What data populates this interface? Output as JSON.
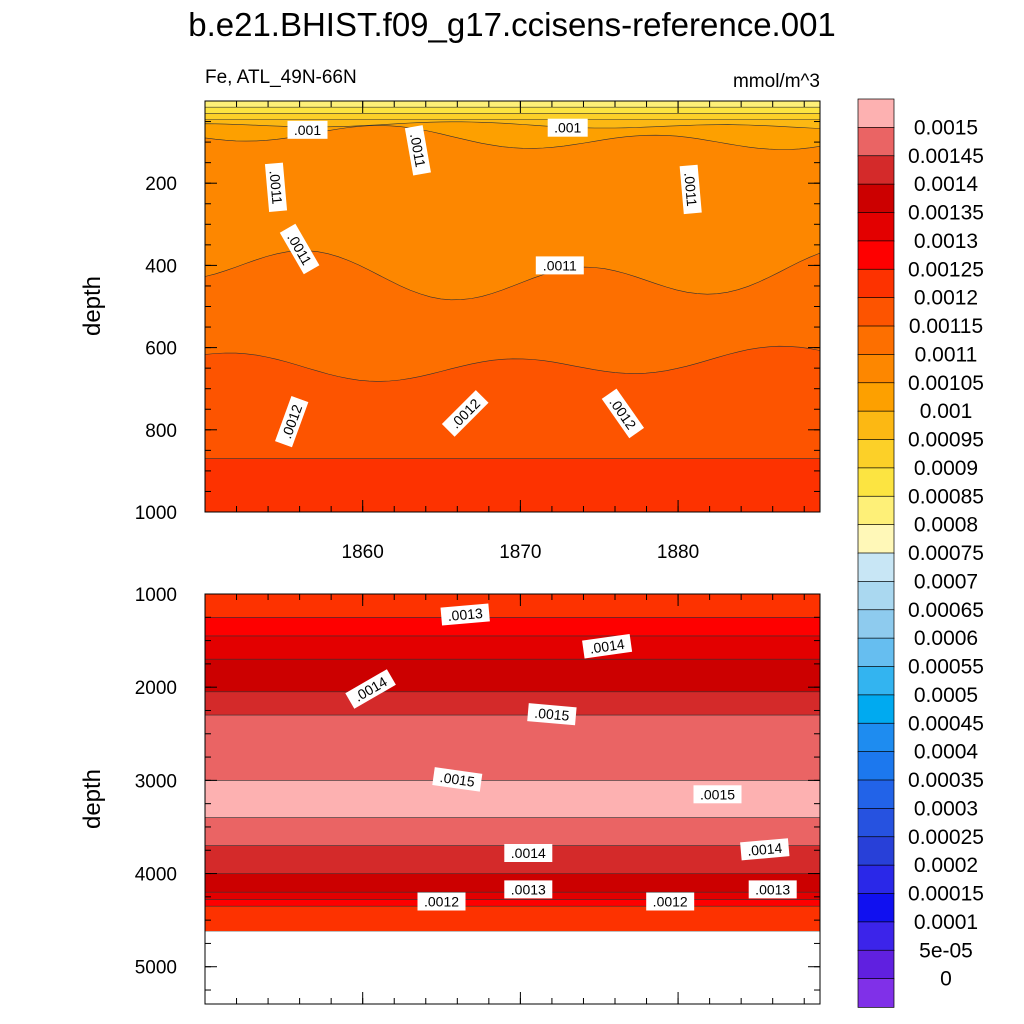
{
  "title": "b.e21.BHIST.f09_g17.ccisens-reference.001",
  "chart_data": [
    {
      "type": "contour",
      "panel": "upper",
      "variable_label": "Fe, ATL_49N-66N",
      "units": "mmol/m^3",
      "xlabel": "",
      "ylabel": "depth",
      "xlim": [
        1850,
        1889
      ],
      "ylim": [
        1000,
        0
      ],
      "x_ticks": [
        1860,
        1870,
        1880
      ],
      "y_ticks": [
        200,
        400,
        600,
        800,
        1000
      ],
      "band_boundaries": [
        {
          "depth": 15,
          "value": 0.00085
        },
        {
          "depth": 30,
          "value": 0.0009
        },
        {
          "depth": 45,
          "value": 0.00095
        },
        {
          "depth": 60,
          "value": 0.001
        },
        {
          "depth": 90,
          "value": 0.00105
        },
        {
          "depth": 420,
          "value": 0.0011
        },
        {
          "depth": 640,
          "value": 0.00115
        },
        {
          "depth": 870,
          "value": 0.0012
        },
        {
          "depth": 1000,
          "value": 0.00125
        }
      ],
      "contour_labels": [
        {
          "text": ".001",
          "x": 1856.5,
          "y": 70,
          "rot": 0
        },
        {
          "text": ".001",
          "x": 1873,
          "y": 65,
          "rot": 0
        },
        {
          "text": ".0011",
          "x": 1863.5,
          "y": 120,
          "rot": 80
        },
        {
          "text": ".0011",
          "x": 1854.5,
          "y": 210,
          "rot": 85
        },
        {
          "text": ".0011",
          "x": 1880.8,
          "y": 215,
          "rot": 85
        },
        {
          "text": ".0011",
          "x": 1856,
          "y": 360,
          "rot": 60
        },
        {
          "text": ".0011",
          "x": 1872.5,
          "y": 400,
          "rot": 0
        },
        {
          "text": ".0012",
          "x": 1855.5,
          "y": 780,
          "rot": -70
        },
        {
          "text": ".0012",
          "x": 1866.5,
          "y": 760,
          "rot": -45
        },
        {
          "text": ".0012",
          "x": 1876.5,
          "y": 760,
          "rot": 55
        }
      ]
    },
    {
      "type": "contour",
      "panel": "lower",
      "xlabel": "",
      "ylabel": "depth",
      "xlim": [
        1850,
        1889
      ],
      "ylim": [
        5400,
        1000
      ],
      "y_ticks": [
        1000,
        2000,
        3000,
        4000,
        5000
      ],
      "seafloor_depth": 4620,
      "band_boundaries": [
        {
          "depth": 1250,
          "value": 0.00125
        },
        {
          "depth": 1450,
          "value": 0.0013
        },
        {
          "depth": 1700,
          "value": 0.00135
        },
        {
          "depth": 2050,
          "value": 0.0014
        },
        {
          "depth": 2300,
          "value": 0.00145
        },
        {
          "depth": 3000,
          "value": 0.0015
        },
        {
          "depth": 3400,
          "value": 0.00145
        },
        {
          "depth": 3700,
          "value": 0.0014
        },
        {
          "depth": 4000,
          "value": 0.00135
        },
        {
          "depth": 4200,
          "value": 0.0013
        },
        {
          "depth": 4280,
          "value": 0.00125
        },
        {
          "depth": 4350,
          "value": 0.0012
        },
        {
          "depth": 4620,
          "value": 0.00115
        }
      ],
      "contour_labels": [
        {
          "text": ".0013",
          "x": 1866.5,
          "y": 1220,
          "rot": -5
        },
        {
          "text": ".0014",
          "x": 1875.5,
          "y": 1560,
          "rot": -8
        },
        {
          "text": ".0014",
          "x": 1860.5,
          "y": 2020,
          "rot": -30
        },
        {
          "text": ".0015",
          "x": 1872,
          "y": 2290,
          "rot": 5
        },
        {
          "text": ".0015",
          "x": 1866,
          "y": 2990,
          "rot": 8
        },
        {
          "text": ".0015",
          "x": 1882.5,
          "y": 3150,
          "rot": 0
        },
        {
          "text": ".0014",
          "x": 1870.5,
          "y": 3780,
          "rot": 0
        },
        {
          "text": ".0014",
          "x": 1885.5,
          "y": 3740,
          "rot": -5
        },
        {
          "text": ".0013",
          "x": 1870.5,
          "y": 4170,
          "rot": 0
        },
        {
          "text": ".0013",
          "x": 1886,
          "y": 4170,
          "rot": 0
        },
        {
          "text": ".0012",
          "x": 1865,
          "y": 4300,
          "rot": 0
        },
        {
          "text": ".0012",
          "x": 1879.5,
          "y": 4300,
          "rot": 0
        }
      ]
    }
  ],
  "colorbar": {
    "labels": [
      "0.0015",
      "0.00145",
      "0.0014",
      "0.00135",
      "0.0013",
      "0.00125",
      "0.0012",
      "0.00115",
      "0.0011",
      "0.00105",
      "0.001",
      "0.00095",
      "0.0009",
      "0.00085",
      "0.0008",
      "0.00075",
      "0.0007",
      "0.00065",
      "0.0006",
      "0.00055",
      "0.0005",
      "0.00045",
      "0.0004",
      "0.00035",
      "0.0003",
      "0.00025",
      "0.0002",
      "0.00015",
      "0.0001",
      "5e-05",
      "0"
    ],
    "levels": [
      0.0015,
      0.00145,
      0.0014,
      0.00135,
      0.0013,
      0.00125,
      0.0012,
      0.00115,
      0.0011,
      0.00105,
      0.001,
      0.00095,
      0.0009,
      0.00085,
      0.0008,
      0.00075,
      0.0007,
      0.00065,
      0.0006,
      0.00055,
      0.0005,
      0.00045,
      0.0004,
      0.00035,
      0.0003,
      0.00025,
      0.0002,
      0.00015,
      0.0001,
      5e-05,
      0
    ],
    "colors": [
      "#FDB1B1",
      "#EA6464",
      "#D42A2A",
      "#CC0000",
      "#E30000",
      "#FE0000",
      "#FD3200",
      "#FD5400",
      "#FD6F00",
      "#FD8700",
      "#FDA000",
      "#FCB813",
      "#FCD028",
      "#FCE441",
      "#FEF078",
      "#FFF8B8",
      "#C8E6F5",
      "#AAD8F0",
      "#8ECBEE",
      "#66BEF0",
      "#33B4F0",
      "#00AAF0",
      "#1E8CF0",
      "#1C78EE",
      "#2263E8",
      "#2652E0",
      "#2840D8",
      "#2A28E8",
      "#1010F0",
      "#3C24EA",
      "#6020E0",
      "#8030E8"
    ]
  }
}
